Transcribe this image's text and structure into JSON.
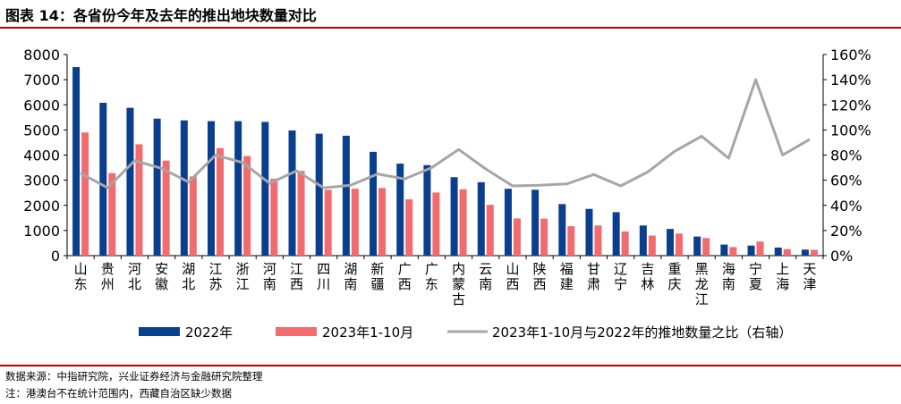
{
  "title": "图表 14：各省份今年及去年的推出地块数量对比",
  "source_note": "数据来源：中指研究院，兴业证券经济与金融研究院整理",
  "footnote": "注：港澳台不在统计范围内，西藏自治区缺少数据",
  "colors": {
    "bar2022": "#0a3f8f",
    "bar2023": "#f26b6f",
    "ratio": "#a6a6a6",
    "rule": "#c00000"
  },
  "chart_data": {
    "type": "bar",
    "categories": [
      "山东",
      "贵州",
      "河北",
      "安徽",
      "湖北",
      "江苏",
      "浙江",
      "河南",
      "江西",
      "四川",
      "湖南",
      "新疆",
      "广西",
      "广东",
      "内蒙古",
      "云南",
      "山西",
      "陕西",
      "福建",
      "甘肃",
      "辽宁",
      "吉林",
      "重庆",
      "黑龙江",
      "海南",
      "宁夏",
      "上海",
      "天津"
    ],
    "series": [
      {
        "name": "2022年",
        "axis": "left",
        "values": [
          7500,
          6080,
          5880,
          5450,
          5380,
          5350,
          5350,
          5320,
          4980,
          4850,
          4770,
          4130,
          3660,
          3600,
          3120,
          2920,
          2660,
          2620,
          2050,
          1860,
          1730,
          1200,
          1060,
          760,
          440,
          400,
          320,
          240
        ]
      },
      {
        "name": "2023年1-10月",
        "axis": "left",
        "values": [
          4900,
          3280,
          4430,
          3780,
          3150,
          4280,
          3960,
          3060,
          3370,
          2620,
          2660,
          2690,
          2240,
          2510,
          2640,
          2020,
          1480,
          1470,
          1170,
          1200,
          960,
          800,
          880,
          700,
          340,
          560,
          260,
          230
        ]
      },
      {
        "name": "2023年1-10月与2022年的推地数量之比（右轴）",
        "axis": "right",
        "type": "line",
        "values": [
          0.655,
          0.54,
          0.755,
          0.695,
          0.585,
          0.8,
          0.74,
          0.575,
          0.675,
          0.54,
          0.56,
          0.65,
          0.61,
          0.7,
          0.845,
          0.69,
          0.555,
          0.56,
          0.57,
          0.645,
          0.555,
          0.665,
          0.83,
          0.95,
          0.775,
          1.4,
          0.8,
          0.925
        ]
      }
    ],
    "y_left": {
      "ylim": [
        0,
        8000
      ],
      "ticks": [
        "0",
        "1000",
        "2000",
        "3000",
        "4000",
        "5000",
        "6000",
        "7000",
        "8000"
      ]
    },
    "y_right": {
      "ylim": [
        0,
        1.6
      ],
      "ticks": [
        "0%",
        "20%",
        "40%",
        "60%",
        "80%",
        "100%",
        "120%",
        "140%",
        "160%"
      ]
    },
    "grid": false,
    "legend": "bottom"
  }
}
